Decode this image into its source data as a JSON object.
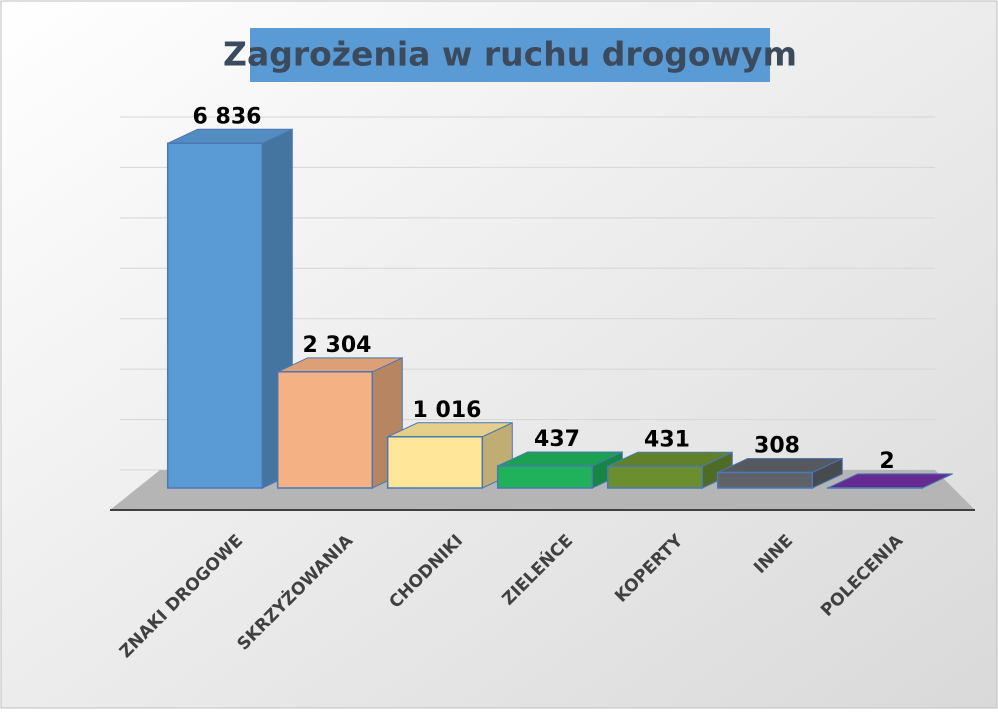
{
  "chart_data": {
    "type": "bar",
    "title": "Zagrożenia w ruchu drogowym",
    "categories": [
      "ZNAKI DROGOWE",
      "SKRZYŻOWANIA",
      "CHODNIKI",
      "ZIELEŃCE",
      "KOPERTY",
      "INNE",
      "POLECENIA"
    ],
    "values": [
      6836,
      2304,
      1016,
      437,
      431,
      308,
      2
    ],
    "value_labels": [
      "6 836",
      "2 304",
      "1 016",
      "437",
      "431",
      "308",
      "2"
    ],
    "colors": [
      "#5b9bd5",
      "#f4b183",
      "#ffe699",
      "#1fb25a",
      "#6b8e2f",
      "#5f6369",
      "#7030a0"
    ],
    "ylim": [
      0,
      7000
    ],
    "yticks": [
      0,
      1000,
      2000,
      3000,
      4000,
      5000,
      6000,
      7000
    ],
    "grid": true
  }
}
